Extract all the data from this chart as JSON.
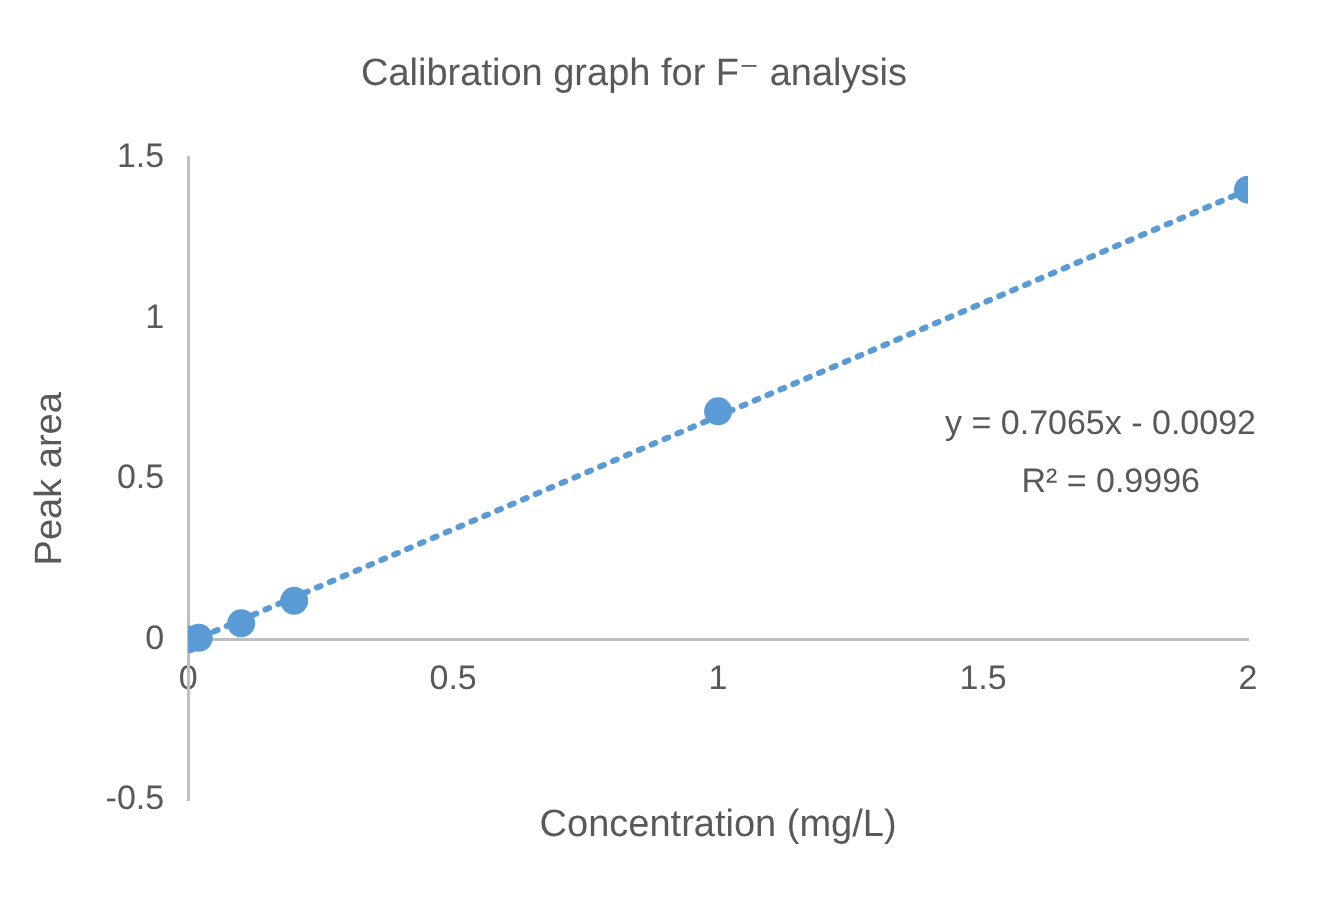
{
  "chart_data": {
    "type": "scatter",
    "title": "Calibration graph for F⁻ analysis",
    "xlabel": "Concentration (mg/L)",
    "ylabel": "Peak area",
    "series": [
      {
        "color": "#5b9bd5",
        "marker": "circle",
        "x": [
          0,
          0.02,
          0.1,
          0.2,
          1,
          2
        ],
        "values": [
          0,
          0.005,
          0.05,
          0.12,
          0.71,
          1.4
        ]
      },
      {
        "type": "line",
        "color": "#5b9bd5",
        "marker": "none",
        "line_style": "dotted",
        "x": [
          0,
          2
        ],
        "values": [
          -0.01,
          1.4
        ]
      }
    ],
    "annotations": [
      "y = 0.7065x - 0.0092",
      "R² = 0.9996"
    ],
    "xlim": [
      0,
      2
    ],
    "xticks": [
      0,
      0.5,
      1,
      1.5,
      2
    ],
    "ylim": [
      -0.5,
      1.5
    ],
    "yticks": [
      -0.5,
      0,
      0.5,
      1,
      1.5
    ],
    "grid": false,
    "legend": false
  }
}
